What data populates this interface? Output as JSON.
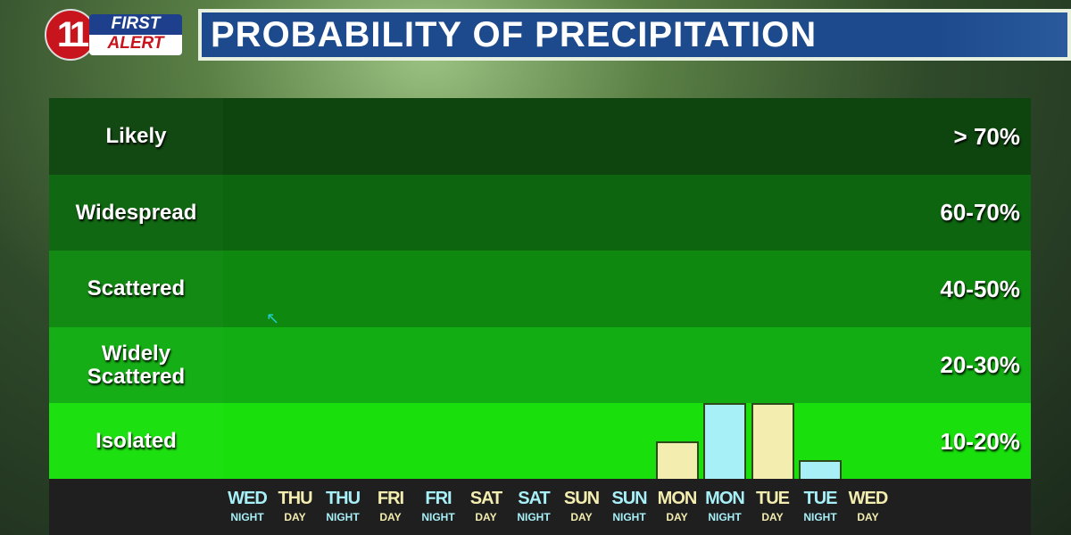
{
  "logo": {
    "number": "11",
    "line1": "FIRST",
    "line2": "ALERT"
  },
  "title": "PROBABILITY OF PRECIPITATION",
  "chart_data": {
    "type": "bar",
    "title": "PROBABILITY OF PRECIPITATION",
    "bands": [
      {
        "label": "Likely",
        "range": "> 70%",
        "color": "#0e450e"
      },
      {
        "label": "Widespread",
        "range": "60-70%",
        "color": "#0d650f"
      },
      {
        "label": "Scattered",
        "range": "40-50%",
        "color": "#0f880f"
      },
      {
        "label": "Widely Scattered",
        "range": "20-30%",
        "color": "#12ad12"
      },
      {
        "label": "Isolated",
        "range": "10-20%",
        "color": "#19e00c"
      }
    ],
    "categories": [
      {
        "day": "WED",
        "period": "NIGHT"
      },
      {
        "day": "THU",
        "period": "DAY"
      },
      {
        "day": "THU",
        "period": "NIGHT"
      },
      {
        "day": "FRI",
        "period": "DAY"
      },
      {
        "day": "FRI",
        "period": "NIGHT"
      },
      {
        "day": "SAT",
        "period": "DAY"
      },
      {
        "day": "SAT",
        "period": "NIGHT"
      },
      {
        "day": "SUN",
        "period": "DAY"
      },
      {
        "day": "SUN",
        "period": "NIGHT"
      },
      {
        "day": "MON",
        "period": "DAY"
      },
      {
        "day": "MON",
        "period": "NIGHT"
      },
      {
        "day": "TUE",
        "period": "DAY"
      },
      {
        "day": "TUE",
        "period": "NIGHT"
      },
      {
        "day": "WED",
        "period": "DAY"
      }
    ],
    "values": [
      0,
      0,
      0,
      0,
      0,
      0,
      0,
      0,
      0,
      10,
      20,
      20,
      5,
      0
    ],
    "ylim": [
      0,
      100
    ],
    "colors": {
      "day": "#f4edb0",
      "night": "#a8f0f8"
    }
  }
}
